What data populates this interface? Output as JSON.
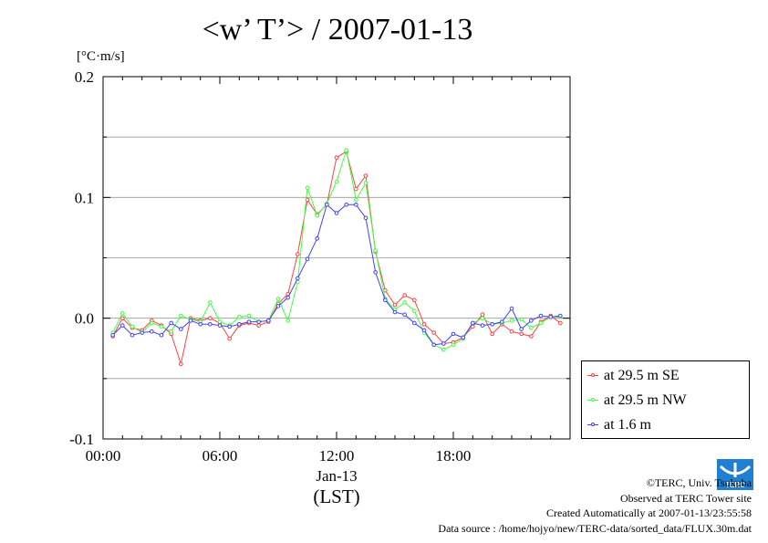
{
  "title": "<w’ T’> / 2007-01-13",
  "chart_data": {
    "type": "line",
    "title": "<w’ T’> / 2007-01-13",
    "ylabel": "[°C·m/s]",
    "xlabel": "(LST)",
    "x_tick_labels": [
      "00:00",
      "06:00",
      "12:00",
      "18:00"
    ],
    "x_tick_hours": [
      0,
      6,
      12,
      18
    ],
    "x_sublabel": "Jan-13",
    "x_sublabel_hour": 12,
    "xlim_hours": [
      0,
      24
    ],
    "ylim": [
      -0.1,
      0.2
    ],
    "y_ticks": [
      -0.1,
      0.0,
      0.1,
      0.2
    ],
    "y_tick_labels": [
      "-0.1",
      "0.0",
      "0.1",
      "0.2"
    ],
    "grid": "horizontal dotted at 0.05 steps",
    "legend_position": "right, below plot top-right",
    "x_hours": [
      0.5,
      1,
      1.5,
      2,
      2.5,
      3,
      3.5,
      4,
      4.5,
      5,
      5.5,
      6,
      6.5,
      7,
      7.5,
      8,
      8.5,
      9,
      9.5,
      10,
      10.5,
      11,
      11.5,
      12,
      12.5,
      13,
      13.5,
      14,
      14.5,
      15,
      15.5,
      16,
      16.5,
      17,
      17.5,
      18,
      18.5,
      19,
      19.5,
      20,
      20.5,
      21,
      21.5,
      22,
      22.5,
      23,
      23.5
    ],
    "series": [
      {
        "name": "at 29.5 m SE",
        "color": "#ff4040",
        "values": [
          -0.015,
          0.0,
          -0.008,
          -0.01,
          -0.002,
          -0.006,
          -0.013,
          -0.038,
          0.0,
          -0.002,
          0.0,
          -0.004,
          -0.017,
          -0.006,
          -0.004,
          -0.006,
          -0.003,
          0.012,
          0.02,
          0.053,
          0.098,
          0.086,
          0.094,
          0.133,
          0.138,
          0.107,
          0.118,
          0.055,
          0.023,
          0.011,
          0.019,
          0.015,
          -0.005,
          -0.012,
          -0.021,
          -0.02,
          -0.016,
          -0.007,
          0.003,
          -0.013,
          -0.005,
          -0.011,
          -0.013,
          -0.015,
          -0.003,
          0.002,
          -0.004
        ]
      },
      {
        "name": "at 29.5 m NW",
        "color": "#40ff40",
        "values": [
          -0.012,
          0.004,
          -0.007,
          -0.012,
          -0.004,
          -0.007,
          -0.011,
          0.002,
          -0.001,
          -0.003,
          0.013,
          -0.003,
          -0.006,
          0.001,
          0.002,
          -0.003,
          -0.002,
          0.016,
          -0.002,
          0.03,
          0.108,
          0.085,
          0.095,
          0.113,
          0.139,
          0.098,
          0.112,
          0.056,
          0.016,
          0.007,
          0.013,
          0.006,
          -0.012,
          -0.022,
          -0.026,
          -0.022,
          -0.017,
          -0.004,
          0.0,
          -0.005,
          -0.004,
          -0.002,
          -0.001,
          -0.008,
          -0.004,
          0.001,
          0.001
        ]
      },
      {
        "name": "at 1.6 m",
        "color": "#4040ff",
        "values": [
          -0.014,
          -0.006,
          -0.014,
          -0.012,
          -0.011,
          -0.014,
          -0.004,
          -0.009,
          -0.002,
          -0.005,
          -0.005,
          -0.006,
          -0.007,
          -0.005,
          -0.003,
          -0.003,
          -0.002,
          0.01,
          0.017,
          0.033,
          0.049,
          0.066,
          0.094,
          0.087,
          0.094,
          0.094,
          0.083,
          0.038,
          0.015,
          0.005,
          0.003,
          -0.004,
          -0.01,
          -0.022,
          -0.021,
          -0.013,
          -0.016,
          -0.004,
          -0.006,
          -0.005,
          -0.003,
          0.008,
          -0.009,
          -0.002,
          0.002,
          0.001,
          0.002
        ]
      }
    ]
  },
  "credits": {
    "copyright": "©TERC, Univ. Tsukuba",
    "observed": "Observed at TERC Tower site",
    "created": "Created Automatically at 2007-01-13/23:55:58",
    "source": "Data source : /home/hojyo/new/TERC-data/sorted_data/FLUX.30m.dat"
  },
  "logo_text": "TERC",
  "colors": {
    "logo": "#1f7fd0"
  }
}
